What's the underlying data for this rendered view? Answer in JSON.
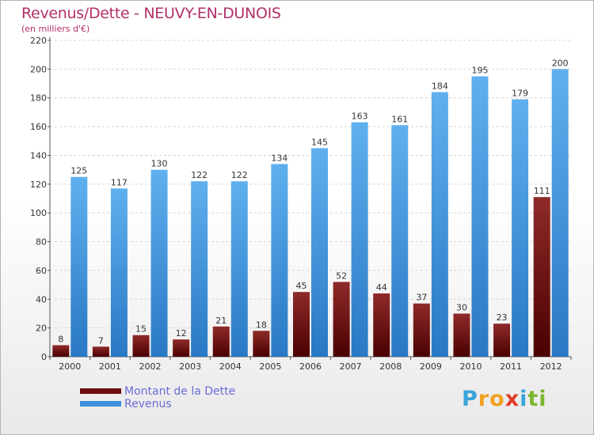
{
  "chart_data": {
    "type": "bar",
    "title": "Revenus/Dette - NEUVY-EN-DUNOIS",
    "subtitle": "(en milliers d'€)",
    "categories": [
      "2000",
      "2001",
      "2002",
      "2003",
      "2004",
      "2005",
      "2006",
      "2007",
      "2008",
      "2009",
      "2010",
      "2011",
      "2012"
    ],
    "series": [
      {
        "name": "Montant de la Dette",
        "color": "#6e0d0d",
        "values": [
          8,
          7,
          15,
          12,
          21,
          18,
          45,
          52,
          44,
          37,
          30,
          23,
          111
        ]
      },
      {
        "name": "Revenus",
        "color": "#3d8fdc",
        "values": [
          125,
          117,
          130,
          122,
          122,
          134,
          145,
          163,
          161,
          184,
          195,
          179,
          200
        ]
      }
    ],
    "yticks": [
      0,
      20,
      40,
      60,
      80,
      100,
      120,
      140,
      160,
      180,
      200,
      220
    ],
    "ylim": [
      0,
      220
    ],
    "xlabel": "",
    "ylabel": "",
    "grid": true,
    "legend_position": "bottom-left"
  },
  "logo": {
    "letters": [
      {
        "char": "P",
        "color": "#3aa4d8"
      },
      {
        "char": "r",
        "color": "#f0a020"
      },
      {
        "char": "o",
        "color": "#f0a020"
      },
      {
        "char": "x",
        "color": "#e23a2a"
      },
      {
        "char": "i",
        "color": "#3aa4d8"
      },
      {
        "char": "t",
        "color": "#7ab82c"
      },
      {
        "char": "i",
        "color": "#7ab82c"
      }
    ]
  }
}
